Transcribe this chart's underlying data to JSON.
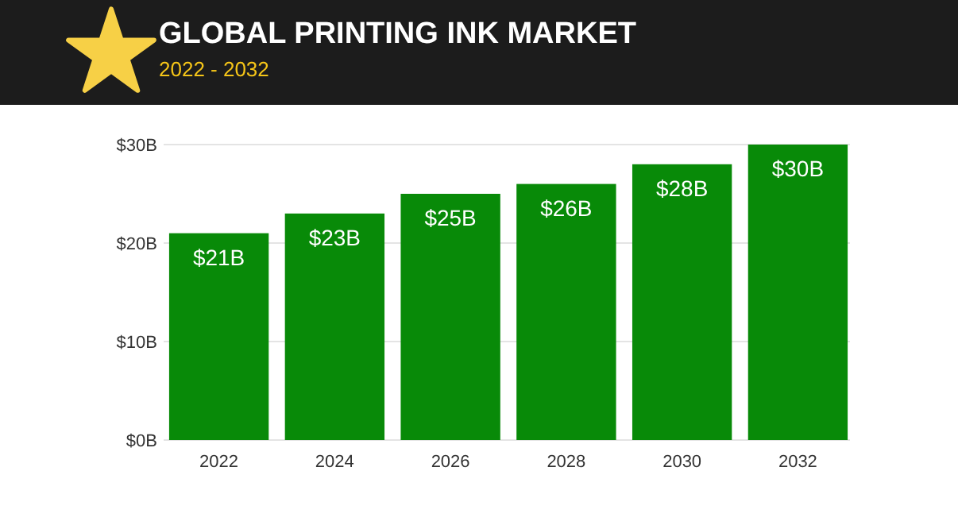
{
  "chart_data": {
    "type": "bar",
    "title": "GLOBAL PRINTING INK MARKET",
    "subtitle": "2022 - 2032",
    "categories": [
      "2022",
      "2024",
      "2026",
      "2028",
      "2030",
      "2032"
    ],
    "values": [
      21,
      23,
      25,
      26,
      28,
      30
    ],
    "value_labels": [
      "$21B",
      "$23B",
      "$25B",
      "$26B",
      "$28B",
      "$30B"
    ],
    "color": "#088a08",
    "ylim": [
      0,
      30
    ],
    "yticks": [
      {
        "value": 0,
        "label": "$0B"
      },
      {
        "value": 10,
        "label": "$10B"
      },
      {
        "value": 20,
        "label": "$20B"
      },
      {
        "value": 30,
        "label": "$30B"
      }
    ],
    "grid": "y"
  }
}
